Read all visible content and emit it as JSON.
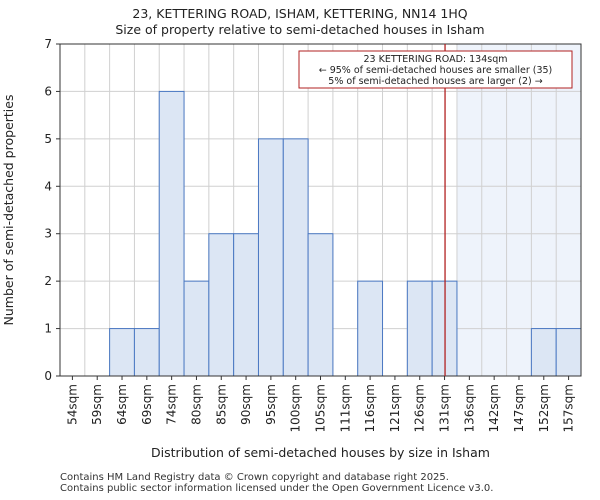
{
  "title_line1": "23, KETTERING ROAD, ISHAM, KETTERING, NN14 1HQ",
  "title_line2": "Size of property relative to semi-detached houses in Isham",
  "footer_line1": "Contains HM Land Registry data © Crown copyright and database right 2025.",
  "footer_line2": "Contains public sector information licensed under the Open Government Licence v3.0.",
  "colors": {
    "bar_fill": "#dce6f4",
    "bar_stroke": "#4a78c2",
    "highlight_bg": "#eef3fb",
    "marker_line": "#b22222",
    "grid": "#d0d0d0"
  },
  "chart_data": {
    "type": "bar",
    "xlabel": "Distribution of semi-detached houses by size in Isham",
    "ylabel": "Number of semi-detached properties",
    "ylim": [
      0,
      7
    ],
    "yticks": [
      0,
      1,
      2,
      3,
      4,
      5,
      6,
      7
    ],
    "categories": [
      "54sqm",
      "59sqm",
      "64sqm",
      "69sqm",
      "74sqm",
      "80sqm",
      "85sqm",
      "90sqm",
      "95sqm",
      "100sqm",
      "105sqm",
      "111sqm",
      "116sqm",
      "121sqm",
      "126sqm",
      "131sqm",
      "136sqm",
      "142sqm",
      "147sqm",
      "152sqm",
      "157sqm"
    ],
    "values": [
      0,
      0,
      1,
      1,
      6,
      2,
      3,
      3,
      5,
      5,
      3,
      0,
      2,
      0,
      2,
      2,
      0,
      0,
      0,
      1,
      1
    ],
    "marker": {
      "value_sqm": 134,
      "bin_position": 15.5,
      "label_lines": [
        "23 KETTERING ROAD: 134sqm",
        "← 95% of semi-detached houses are smaller (35)",
        "5% of semi-detached houses are larger (2) →"
      ]
    },
    "grid": true
  }
}
